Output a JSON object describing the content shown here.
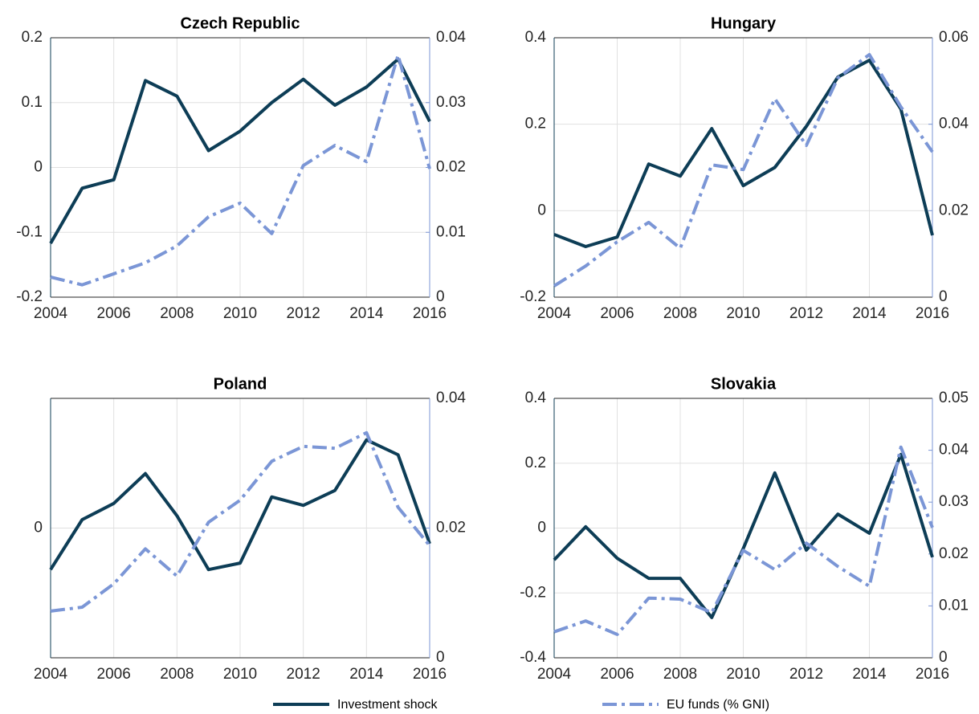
{
  "chart_data": [
    {
      "type": "line",
      "title": "Czech Republic",
      "x": [
        2004,
        2005,
        2006,
        2007,
        2008,
        2009,
        2010,
        2011,
        2012,
        2013,
        2014,
        2015,
        2016
      ],
      "xlim": [
        2004,
        2016
      ],
      "xticks": [
        2004,
        2006,
        2008,
        2010,
        2012,
        2014,
        2016
      ],
      "ylim": [
        -0.2,
        0.2
      ],
      "yticks": [
        -0.2,
        -0.1,
        0,
        0.1,
        0.2
      ],
      "y2lim": [
        0,
        0.04
      ],
      "y2ticks": [
        0,
        0.01,
        0.02,
        0.03,
        0.04
      ],
      "grid": true,
      "series": [
        {
          "name": "Investment shock",
          "color": "#0d3d56",
          "values": [
            -0.117,
            -0.032,
            -0.019,
            0.134,
            0.11,
            0.026,
            0.056,
            0.1,
            0.136,
            0.096,
            0.124,
            0.167,
            0.071
          ]
        },
        {
          "name": "EU funds (% GNI)",
          "color": "#7b96d6",
          "axis": "y2",
          "values": [
            0.0031,
            0.0019,
            0.0036,
            0.0053,
            0.0079,
            0.0124,
            0.0145,
            0.0098,
            0.0203,
            0.0234,
            0.0209,
            0.0373,
            0.0198
          ]
        }
      ]
    },
    {
      "type": "line",
      "title": "Hungary",
      "x": [
        2004,
        2005,
        2006,
        2007,
        2008,
        2009,
        2010,
        2011,
        2012,
        2013,
        2014,
        2015,
        2016
      ],
      "xlim": [
        2004,
        2016
      ],
      "xticks": [
        2004,
        2006,
        2008,
        2010,
        2012,
        2014,
        2016
      ],
      "ylim": [
        -0.2,
        0.4
      ],
      "yticks": [
        -0.2,
        0,
        0.2,
        0.4
      ],
      "y2lim": [
        0,
        0.06
      ],
      "y2ticks": [
        0,
        0.02,
        0.04,
        0.06
      ],
      "grid": true,
      "series": [
        {
          "color": "#0d3d56",
          "values": [
            -0.055,
            -0.083,
            -0.061,
            0.108,
            0.08,
            0.19,
            0.058,
            0.1,
            0.195,
            0.309,
            0.348,
            0.235,
            -0.057
          ]
        },
        {
          "color": "#7b96d6",
          "axis": "y2",
          "values": [
            0.0026,
            0.0072,
            0.0128,
            0.0173,
            0.0113,
            0.0306,
            0.0295,
            0.0459,
            0.0351,
            0.0507,
            0.0561,
            0.044,
            0.0336
          ]
        }
      ]
    },
    {
      "type": "line",
      "title": "Poland",
      "x": [
        2004,
        2005,
        2006,
        2007,
        2008,
        2009,
        2010,
        2011,
        2012,
        2013,
        2014,
        2015,
        2016
      ],
      "xlim": [
        2004,
        2016
      ],
      "xticks": [
        2004,
        2006,
        2008,
        2010,
        2012,
        2014,
        2016
      ],
      "ylim": [
        -0.2,
        0.2
      ],
      "yticks": [
        0
      ],
      "y2lim": [
        0,
        0.04
      ],
      "y2ticks": [
        0,
        0.02,
        0.04
      ],
      "grid": true,
      "series": [
        {
          "color": "#0d3d56",
          "values": [
            -0.064,
            0.013,
            0.038,
            0.084,
            0.019,
            -0.064,
            -0.054,
            0.048,
            0.035,
            0.058,
            0.136,
            0.113,
            -0.024
          ]
        },
        {
          "color": "#7b96d6",
          "axis": "y2",
          "values": [
            0.0072,
            0.0078,
            0.0114,
            0.0168,
            0.0126,
            0.0209,
            0.0243,
            0.0303,
            0.0326,
            0.0323,
            0.0347,
            0.0232,
            0.0173
          ]
        }
      ]
    },
    {
      "type": "line",
      "title": "Slovakia",
      "x": [
        2004,
        2005,
        2006,
        2007,
        2008,
        2009,
        2010,
        2011,
        2012,
        2013,
        2014,
        2015,
        2016
      ],
      "xlim": [
        2004,
        2016
      ],
      "xticks": [
        2004,
        2006,
        2008,
        2010,
        2012,
        2014,
        2016
      ],
      "ylim": [
        -0.4,
        0.4
      ],
      "yticks": [
        -0.4,
        -0.2,
        0,
        0.2,
        0.4
      ],
      "y2lim": [
        0,
        0.05
      ],
      "y2ticks": [
        0,
        0.01,
        0.02,
        0.03,
        0.04,
        0.05
      ],
      "grid": true,
      "series": [
        {
          "color": "#0d3d56",
          "values": [
            -0.098,
            0.004,
            -0.093,
            -0.155,
            -0.155,
            -0.276,
            -0.063,
            0.17,
            -0.068,
            0.043,
            -0.016,
            0.227,
            -0.09
          ]
        },
        {
          "color": "#7b96d6",
          "axis": "y2",
          "values": [
            0.005,
            0.0071,
            0.0045,
            0.0115,
            0.0113,
            0.0087,
            0.0207,
            0.017,
            0.0221,
            0.0176,
            0.0138,
            0.0406,
            0.0251
          ]
        }
      ]
    }
  ]
}
